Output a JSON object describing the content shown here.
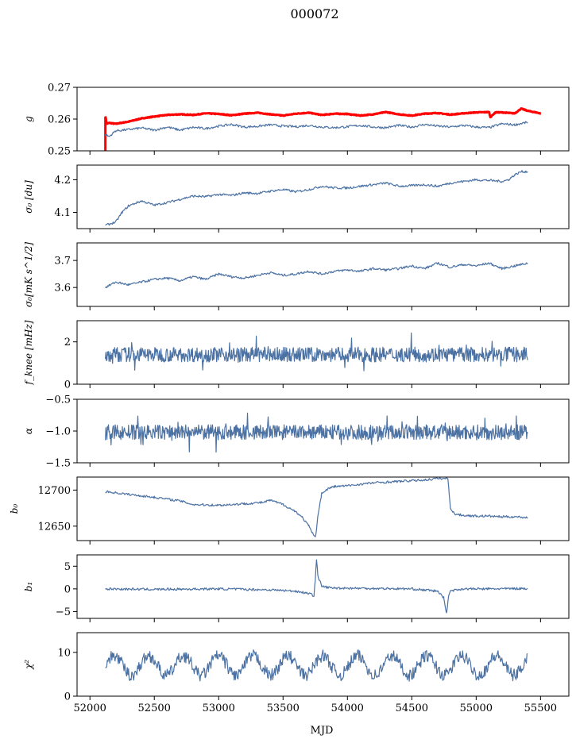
{
  "title": "000072",
  "xlabel": "MJD",
  "colors": {
    "series": "#4c72a4",
    "highlight": "#ff0000",
    "axis": "#000000"
  },
  "chart_data": [
    {
      "type": "line",
      "ylabel": "g",
      "xlim": [
        51900,
        55720
      ],
      "ylim": [
        0.25,
        0.27
      ],
      "yticks": [
        "0.25",
        "0.26",
        "0.27"
      ],
      "ytick_values": [
        0.25,
        0.26,
        0.27
      ],
      "series": [
        {
          "kind": "red",
          "x": [
            52120,
            52130,
            52150,
            52200,
            52300,
            52400,
            52500,
            52600,
            52700,
            52800,
            52900,
            53000,
            53100,
            53200,
            53300,
            53400,
            53500,
            53600,
            53700,
            53800,
            53900,
            54000,
            54100,
            54200,
            54300,
            54400,
            54500,
            54600,
            54700,
            54800,
            54900,
            55000,
            55100,
            55110,
            55150,
            55200,
            55300,
            55350,
            55400,
            55450,
            55500
          ],
          "y": [
            0.261,
            0.2585,
            0.2588,
            0.2585,
            0.2592,
            0.2602,
            0.2608,
            0.2613,
            0.2615,
            0.2613,
            0.2618,
            0.2616,
            0.2612,
            0.2617,
            0.262,
            0.2615,
            0.2611,
            0.2617,
            0.262,
            0.2613,
            0.2617,
            0.2616,
            0.2611,
            0.2615,
            0.2622,
            0.2615,
            0.2611,
            0.2617,
            0.2619,
            0.2614,
            0.2618,
            0.2621,
            0.2622,
            0.2606,
            0.2621,
            0.2621,
            0.2618,
            0.2633,
            0.2626,
            0.2622,
            0.2618
          ]
        },
        {
          "kind": "blue",
          "x": [
            52120,
            52150,
            52200,
            52300,
            52400,
            52500,
            52600,
            52700,
            52800,
            52900,
            53000,
            53100,
            53200,
            53300,
            53400,
            53500,
            53600,
            53700,
            53800,
            53900,
            54000,
            54100,
            54200,
            54300,
            54400,
            54500,
            54600,
            54700,
            54800,
            54900,
            55000,
            55100,
            55200,
            55300,
            55400
          ],
          "y": [
            0.255,
            0.2545,
            0.2563,
            0.2567,
            0.2572,
            0.2565,
            0.2575,
            0.2565,
            0.2574,
            0.257,
            0.2578,
            0.2583,
            0.2575,
            0.2577,
            0.2582,
            0.2578,
            0.2576,
            0.258,
            0.2575,
            0.2573,
            0.2576,
            0.258,
            0.2575,
            0.2573,
            0.258,
            0.2575,
            0.2583,
            0.2578,
            0.2575,
            0.258,
            0.2575,
            0.2573,
            0.2585,
            0.2582,
            0.259
          ]
        }
      ]
    },
    {
      "type": "line",
      "ylabel": "σ₀ [du]",
      "xlim": [
        51900,
        55720
      ],
      "ylim": [
        4.05,
        4.245
      ],
      "yticks": [
        "4.1",
        "4.2"
      ],
      "ytick_values": [
        4.1,
        4.2
      ],
      "series": [
        {
          "kind": "blue",
          "x": [
            52120,
            52200,
            52250,
            52300,
            52400,
            52500,
            52600,
            52700,
            52800,
            52900,
            53000,
            53100,
            53200,
            53300,
            53400,
            53500,
            53600,
            53700,
            53800,
            53900,
            54000,
            54100,
            54200,
            54300,
            54400,
            54500,
            54600,
            54700,
            54800,
            54900,
            55000,
            55100,
            55200,
            55250,
            55300,
            55350,
            55400
          ],
          "y": [
            4.06,
            4.07,
            4.1,
            4.12,
            4.135,
            4.122,
            4.13,
            4.14,
            4.15,
            4.148,
            4.155,
            4.152,
            4.16,
            4.158,
            4.165,
            4.17,
            4.163,
            4.17,
            4.18,
            4.175,
            4.175,
            4.18,
            4.185,
            4.19,
            4.18,
            4.182,
            4.185,
            4.18,
            4.19,
            4.195,
            4.2,
            4.198,
            4.195,
            4.2,
            4.215,
            4.225,
            4.225
          ]
        }
      ]
    },
    {
      "type": "line",
      "ylabel": "σ₀[mK s^1/2]",
      "xlim": [
        51900,
        55720
      ],
      "ylim": [
        3.53,
        3.765
      ],
      "yticks": [
        "3.6",
        "3.7"
      ],
      "ytick_values": [
        3.6,
        3.7
      ],
      "series": [
        {
          "kind": "blue",
          "x": [
            52120,
            52200,
            52300,
            52400,
            52500,
            52600,
            52700,
            52800,
            52900,
            53000,
            53100,
            53200,
            53300,
            53400,
            53500,
            53600,
            53700,
            53800,
            53900,
            54000,
            54100,
            54200,
            54300,
            54400,
            54500,
            54600,
            54700,
            54800,
            54900,
            55000,
            55100,
            55200,
            55300,
            55400
          ],
          "y": [
            3.6,
            3.62,
            3.61,
            3.62,
            3.63,
            3.635,
            3.625,
            3.64,
            3.63,
            3.65,
            3.64,
            3.635,
            3.645,
            3.655,
            3.645,
            3.65,
            3.66,
            3.65,
            3.66,
            3.665,
            3.66,
            3.67,
            3.665,
            3.67,
            3.68,
            3.67,
            3.69,
            3.675,
            3.685,
            3.68,
            3.69,
            3.67,
            3.68,
            3.69
          ]
        }
      ]
    },
    {
      "type": "line",
      "ylabel": "f_knee [mHz]",
      "xlim": [
        51900,
        55720
      ],
      "ylim": [
        0,
        3.0
      ],
      "yticks": [
        "0",
        "2"
      ],
      "ytick_values": [
        0,
        2
      ],
      "series": [
        {
          "kind": "noise",
          "x": [
            52120,
            55400
          ],
          "mean": 1.4,
          "amp": 0.35
        }
      ]
    },
    {
      "type": "line",
      "ylabel": "α",
      "xlim": [
        51900,
        55720
      ],
      "ylim": [
        -1.5,
        -0.5
      ],
      "yticks": [
        "−1.5",
        "−1.0",
        "−0.5"
      ],
      "ytick_values": [
        -1.5,
        -1.0,
        -0.5
      ],
      "series": [
        {
          "kind": "noise",
          "x": [
            52120,
            55400
          ],
          "mean": -1.02,
          "amp": 0.12
        }
      ]
    },
    {
      "type": "line",
      "ylabel": "b₀",
      "xlim": [
        51900,
        55720
      ],
      "ylim": [
        12630,
        12718
      ],
      "yticks": [
        "12650",
        "12700"
      ],
      "ytick_values": [
        12650,
        12700
      ],
      "series": [
        {
          "kind": "blue",
          "x": [
            52120,
            52300,
            52500,
            52700,
            52800,
            53000,
            53200,
            53350,
            53400,
            53500,
            53600,
            53650,
            53700,
            53730,
            53750,
            53760,
            53770,
            53790,
            53800,
            53850,
            53900,
            54000,
            54200,
            54400,
            54600,
            54700,
            54780,
            54790,
            54800,
            54830,
            54900,
            55000,
            55100,
            55200,
            55300,
            55400
          ],
          "y": [
            12698,
            12694,
            12690,
            12685,
            12680,
            12679,
            12681,
            12683,
            12686,
            12680,
            12670,
            12662,
            12650,
            12640,
            12634,
            12645,
            12665,
            12685,
            12695,
            12702,
            12705,
            12706,
            12710,
            12712,
            12714,
            12716,
            12716,
            12695,
            12676,
            12667,
            12665,
            12664,
            12664,
            12663,
            12663,
            12662
          ]
        }
      ]
    },
    {
      "type": "line",
      "ylabel": "b₁",
      "xlim": [
        51900,
        55720
      ],
      "ylim": [
        -6.5,
        7.5
      ],
      "yticks": [
        "−5",
        "0",
        "5"
      ],
      "ytick_values": [
        -5,
        0,
        5
      ],
      "series": [
        {
          "kind": "blue",
          "x": [
            52120,
            52500,
            53000,
            53400,
            53600,
            53700,
            53740,
            53750,
            53760,
            53770,
            53780,
            53790,
            53800,
            53820,
            53850,
            53900,
            54200,
            54500,
            54700,
            54750,
            54770,
            54780,
            54790,
            54800,
            54850,
            54900,
            55100,
            55400
          ],
          "y": [
            0,
            -0.1,
            0,
            -0.2,
            -0.5,
            -1,
            -1.5,
            2,
            6.5,
            3,
            2,
            1.5,
            0.5,
            0.5,
            0.3,
            0.2,
            0.1,
            0,
            -0.5,
            -2,
            -5.5,
            -3,
            -1,
            -0.4,
            -0.2,
            0,
            0,
            0.1
          ]
        }
      ]
    },
    {
      "type": "line",
      "ylabel": "χ²",
      "xlim": [
        51900,
        55720
      ],
      "ylim": [
        0,
        14.5
      ],
      "yticks": [
        "0",
        "10"
      ],
      "ytick_values": [
        0,
        10
      ],
      "series": [
        {
          "kind": "periodic",
          "x": [
            52120,
            55400
          ],
          "mean": 7.0,
          "amp": 2.2,
          "period": 270,
          "noise": 1.4
        }
      ]
    }
  ],
  "xticks": [
    "52000",
    "52500",
    "53000",
    "53500",
    "54000",
    "54500",
    "55000",
    "55500"
  ],
  "xtick_values": [
    52000,
    52500,
    53000,
    53500,
    54000,
    54500,
    55000,
    55500
  ]
}
